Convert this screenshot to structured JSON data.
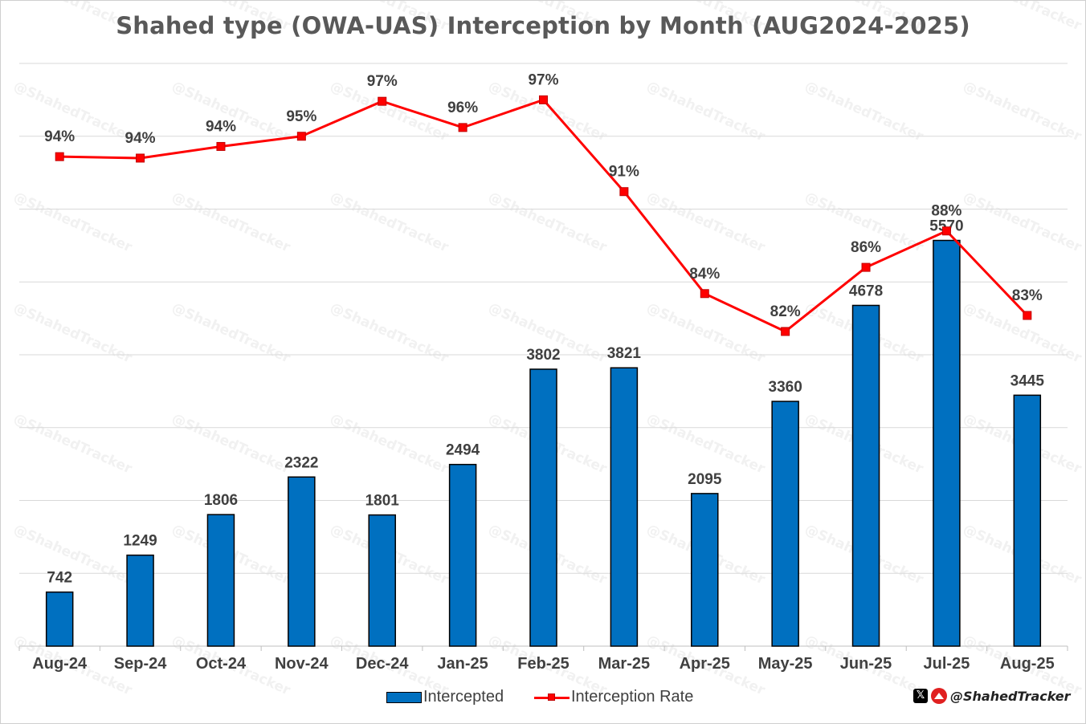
{
  "chart_data": {
    "type": "bar",
    "title": "Shahed type (OWA-UAS) Interception by Month (AUG2024-2025)",
    "categories": [
      "Aug-24",
      "Sep-24",
      "Oct-24",
      "Nov-24",
      "Dec-24",
      "Jan-25",
      "Feb-25",
      "Mar-25",
      "Apr-25",
      "May-25",
      "Jun-25",
      "Jul-25",
      "Aug-25"
    ],
    "series": [
      {
        "name": "Intercepted",
        "type": "bar",
        "color": "#0070C0",
        "values": [
          742,
          1249,
          1806,
          2322,
          1801,
          2494,
          3802,
          3821,
          2095,
          3360,
          4678,
          5570,
          3445
        ],
        "labels": [
          "742",
          "1249",
          "1806",
          "2322",
          "1801",
          "2494",
          "3802",
          "3821",
          "2095",
          "3360",
          "4678",
          "5570",
          "3445"
        ]
      },
      {
        "name": "Interception Rate",
        "type": "line",
        "color": "#FF0000",
        "values": [
          93.6,
          93.5,
          94.3,
          95.0,
          97.4,
          95.6,
          97.5,
          91.2,
          84.2,
          81.6,
          86.0,
          88.5,
          82.7
        ],
        "labels": [
          "94%",
          "94%",
          "94%",
          "95%",
          "97%",
          "96%",
          "97%",
          "91%",
          "84%",
          "82%",
          "86%",
          "88%",
          "83%"
        ]
      }
    ],
    "ylim": [
      0,
      8000
    ],
    "rate_ylim": [
      60,
      100
    ],
    "grid": true,
    "legend_position": "bottom"
  },
  "watermark": "@ShahedTracker",
  "brand": {
    "x_icon": "x-logo-icon",
    "drone_icon": "drone-logo-icon",
    "handle": "@ShahedTracker"
  }
}
